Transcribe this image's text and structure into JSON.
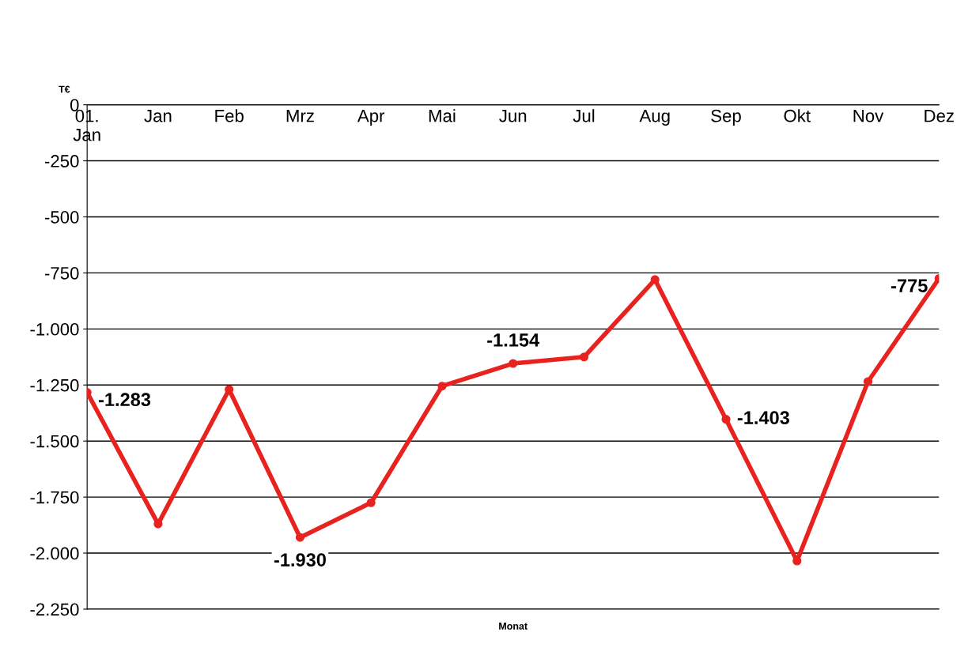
{
  "chart_data": {
    "type": "line",
    "xlabel": "Monat",
    "ylabel": "T€",
    "categories": [
      "01.\nJan",
      "Jan",
      "Feb",
      "Mrz",
      "Apr",
      "Mai",
      "Jun",
      "Jul",
      "Aug",
      "Sep",
      "Okt",
      "Nov",
      "Dez"
    ],
    "series": [
      {
        "color": "#e8231f",
        "values": [
          -1283,
          -1870,
          -1270,
          -1930,
          -1775,
          -1255,
          -1154,
          -1125,
          -780,
          -1403,
          -2035,
          -1235,
          -775
        ],
        "value_labels": [
          "-1.283",
          null,
          null,
          "-1.930",
          null,
          null,
          "-1.154",
          null,
          null,
          "-1.403",
          null,
          null,
          "-775"
        ]
      }
    ],
    "ylim": [
      -2250,
      0
    ],
    "yticks": [
      0,
      -250,
      -500,
      -750,
      {
        "value": -1000,
        "label": "-1.000"
      },
      {
        "value": -1250,
        "label": "-1.250"
      },
      {
        "value": -1500,
        "label": "-1.500"
      },
      {
        "value": -1750,
        "label": "-1.750"
      },
      {
        "value": -2000,
        "label": "-2.000"
      },
      {
        "value": -2250,
        "label": "-2.250"
      }
    ],
    "grid": "y",
    "marker": "circle",
    "line_style": "solid",
    "legend": false
  }
}
